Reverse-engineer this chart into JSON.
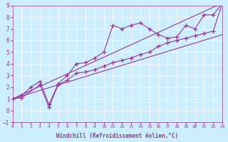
{
  "xlabel": "Windchill (Refroidissement éolien,°C)",
  "xlim": [
    0,
    23
  ],
  "ylim": [
    -1,
    9
  ],
  "xticks": [
    0,
    1,
    2,
    3,
    4,
    5,
    6,
    7,
    8,
    9,
    10,
    11,
    12,
    13,
    14,
    15,
    16,
    17,
    18,
    19,
    20,
    21,
    22,
    23
  ],
  "yticks": [
    -1,
    0,
    1,
    2,
    3,
    4,
    5,
    6,
    7,
    8,
    9
  ],
  "bg_color": "#cceeff",
  "line_color": "#993399",
  "line1_x": [
    0,
    1,
    2,
    3,
    4,
    5,
    6,
    7,
    8,
    9,
    10,
    11,
    12,
    13,
    14,
    15,
    16,
    17,
    18,
    19,
    20,
    21,
    22,
    23
  ],
  "line1_y": [
    1,
    1.3,
    2,
    2.5,
    0.5,
    2.3,
    3.0,
    4.0,
    4.1,
    4.5,
    5.0,
    7.3,
    7.0,
    7.3,
    7.5,
    7.0,
    6.5,
    6.2,
    6.3,
    7.3,
    7.0,
    8.2,
    8.2,
    9.2
  ],
  "line2_x": [
    0,
    1,
    3,
    4,
    5,
    6,
    7,
    8,
    9,
    10,
    11,
    12,
    13,
    14,
    15,
    16,
    17,
    18,
    19,
    20,
    21,
    22,
    23
  ],
  "line2_y": [
    1,
    1.1,
    2.2,
    0.3,
    2.2,
    2.6,
    3.2,
    3.3,
    3.5,
    3.8,
    4.1,
    4.3,
    4.5,
    4.8,
    5.0,
    5.5,
    5.8,
    6.0,
    6.2,
    6.4,
    6.6,
    6.8,
    9.2
  ],
  "line3_x": [
    0,
    23
  ],
  "line3_y": [
    1,
    9.2
  ],
  "line4_x": [
    0,
    23
  ],
  "line4_y": [
    1,
    6.5
  ]
}
